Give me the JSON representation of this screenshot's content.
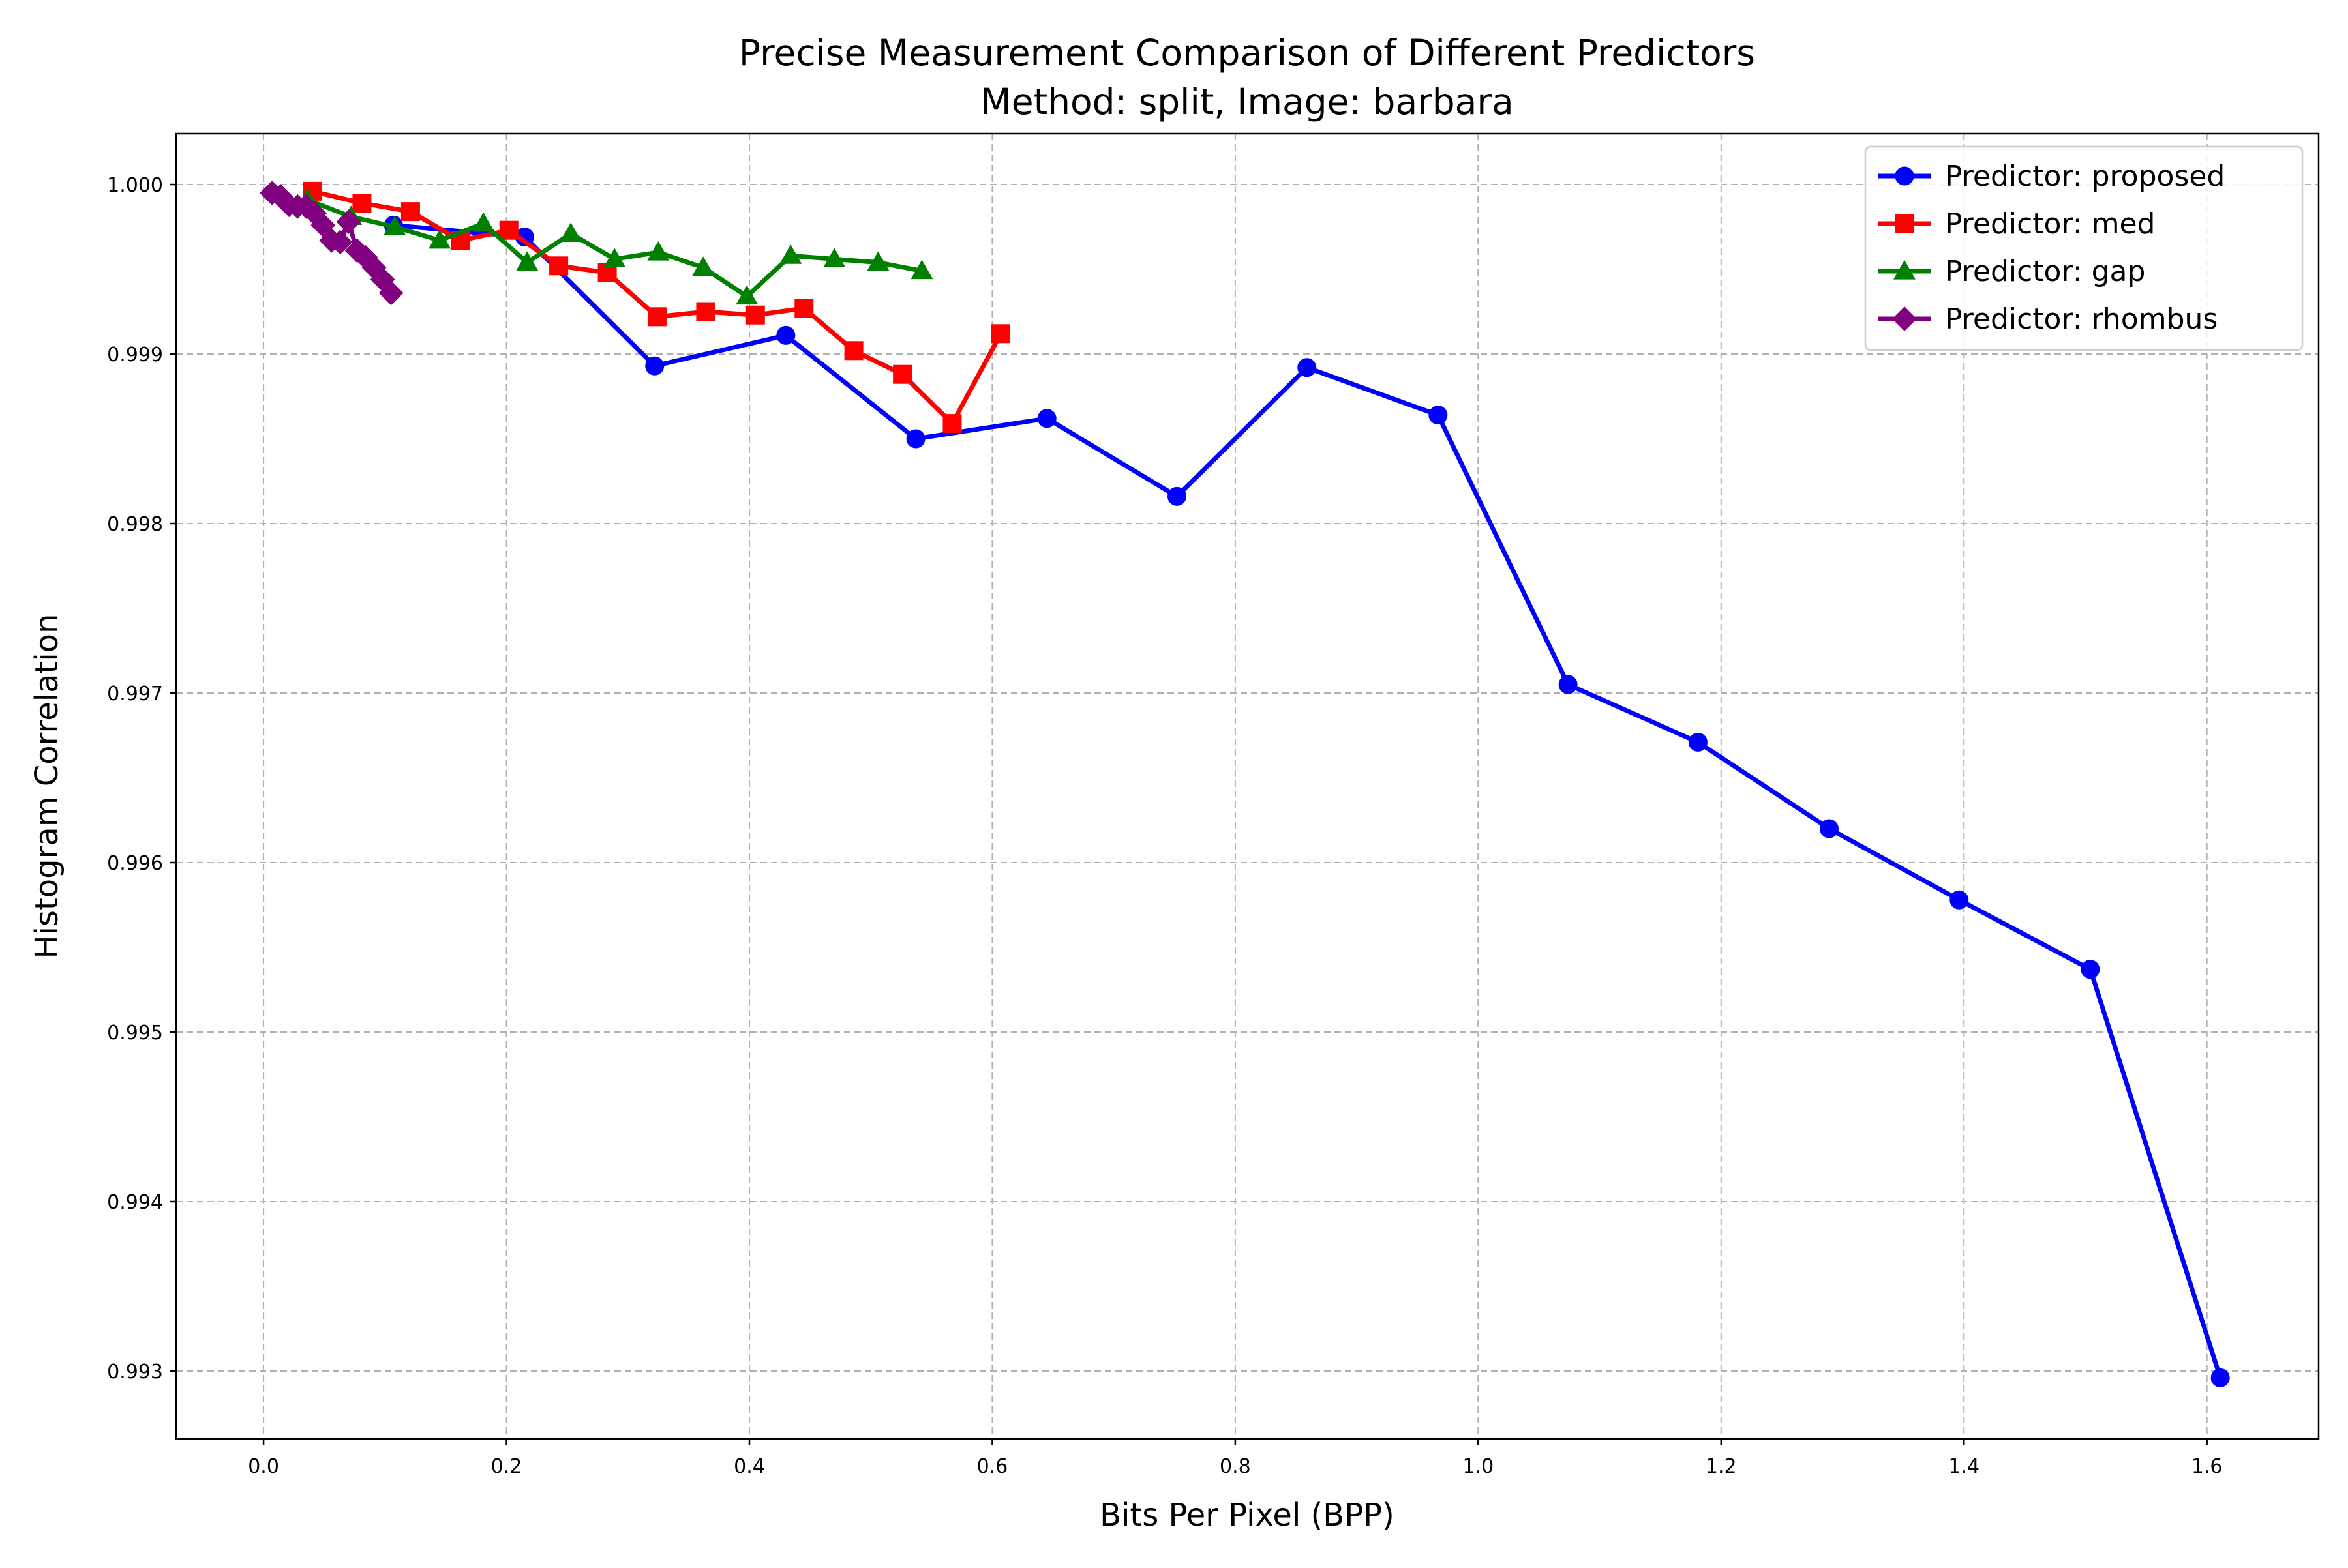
{
  "chart_data": {
    "type": "line",
    "title": "Precise Measurement Comparison of Different Predictors",
    "subtitle": "Method: split, Image: barbara",
    "xlabel": "Bits Per Pixel (BPP)",
    "ylabel": "Histogram Correlation",
    "xlim": [
      -0.072,
      1.692
    ],
    "ylim": [
      0.9926,
      1.0003
    ],
    "xticks": [
      0.0,
      0.2,
      0.4,
      0.6,
      0.8,
      1.0,
      1.2,
      1.4,
      1.6
    ],
    "xtick_labels": [
      "0.0",
      "0.2",
      "0.4",
      "0.6",
      "0.8",
      "1.0",
      "1.2",
      "1.4",
      "1.6"
    ],
    "yticks": [
      0.993,
      0.994,
      0.995,
      0.996,
      0.997,
      0.998,
      0.999,
      1.0
    ],
    "ytick_labels": [
      "0.993",
      "0.994",
      "0.995",
      "0.996",
      "0.997",
      "0.998",
      "0.999",
      "1.000"
    ],
    "grid": true,
    "legend_position": "top-right",
    "series": [
      {
        "name": "Predictor: proposed",
        "color": "#0000ff",
        "marker": "circle",
        "x": [
          0.107,
          0.215,
          0.322,
          0.43,
          0.537,
          0.645,
          0.752,
          0.859,
          0.967,
          1.074,
          1.181,
          1.289,
          1.396,
          1.504,
          1.611
        ],
        "y": [
          0.99976,
          0.99969,
          0.99893,
          0.99911,
          0.9985,
          0.99862,
          0.99816,
          0.99892,
          0.99864,
          0.99705,
          0.99671,
          0.9962,
          0.99578,
          0.99537,
          0.99296
        ]
      },
      {
        "name": "Predictor: med",
        "color": "#ff0000",
        "marker": "square",
        "x": [
          0.04,
          0.081,
          0.121,
          0.162,
          0.202,
          0.243,
          0.283,
          0.324,
          0.364,
          0.405,
          0.445,
          0.486,
          0.526,
          0.567,
          0.607
        ],
        "y": [
          0.99996,
          0.99989,
          0.99984,
          0.99967,
          0.99973,
          0.99952,
          0.99948,
          0.99922,
          0.99925,
          0.99923,
          0.99927,
          0.99902,
          0.99888,
          0.99859,
          0.99912
        ]
      },
      {
        "name": "Predictor: gap",
        "color": "#008000",
        "marker": "triangle",
        "x": [
          0.036,
          0.072,
          0.108,
          0.145,
          0.181,
          0.217,
          0.253,
          0.289,
          0.325,
          0.362,
          0.398,
          0.434,
          0.47,
          0.506,
          0.542
        ],
        "y": [
          0.99991,
          0.99981,
          0.99975,
          0.99967,
          0.99977,
          0.99954,
          0.99971,
          0.99956,
          0.9996,
          0.99951,
          0.99934,
          0.99958,
          0.99956,
          0.99954,
          0.99949
        ]
      },
      {
        "name": "Predictor: rhombus",
        "color": "#800080",
        "marker": "diamond",
        "x": [
          0.007,
          0.014,
          0.021,
          0.028,
          0.035,
          0.042,
          0.049,
          0.056,
          0.063,
          0.07,
          0.077,
          0.084,
          0.091,
          0.098,
          0.105
        ],
        "y": [
          0.99995,
          0.99993,
          0.99988,
          0.99987,
          0.99987,
          0.99983,
          0.99976,
          0.99967,
          0.99966,
          0.99978,
          0.99961,
          0.99957,
          0.99951,
          0.99944,
          0.99936
        ]
      }
    ]
  }
}
